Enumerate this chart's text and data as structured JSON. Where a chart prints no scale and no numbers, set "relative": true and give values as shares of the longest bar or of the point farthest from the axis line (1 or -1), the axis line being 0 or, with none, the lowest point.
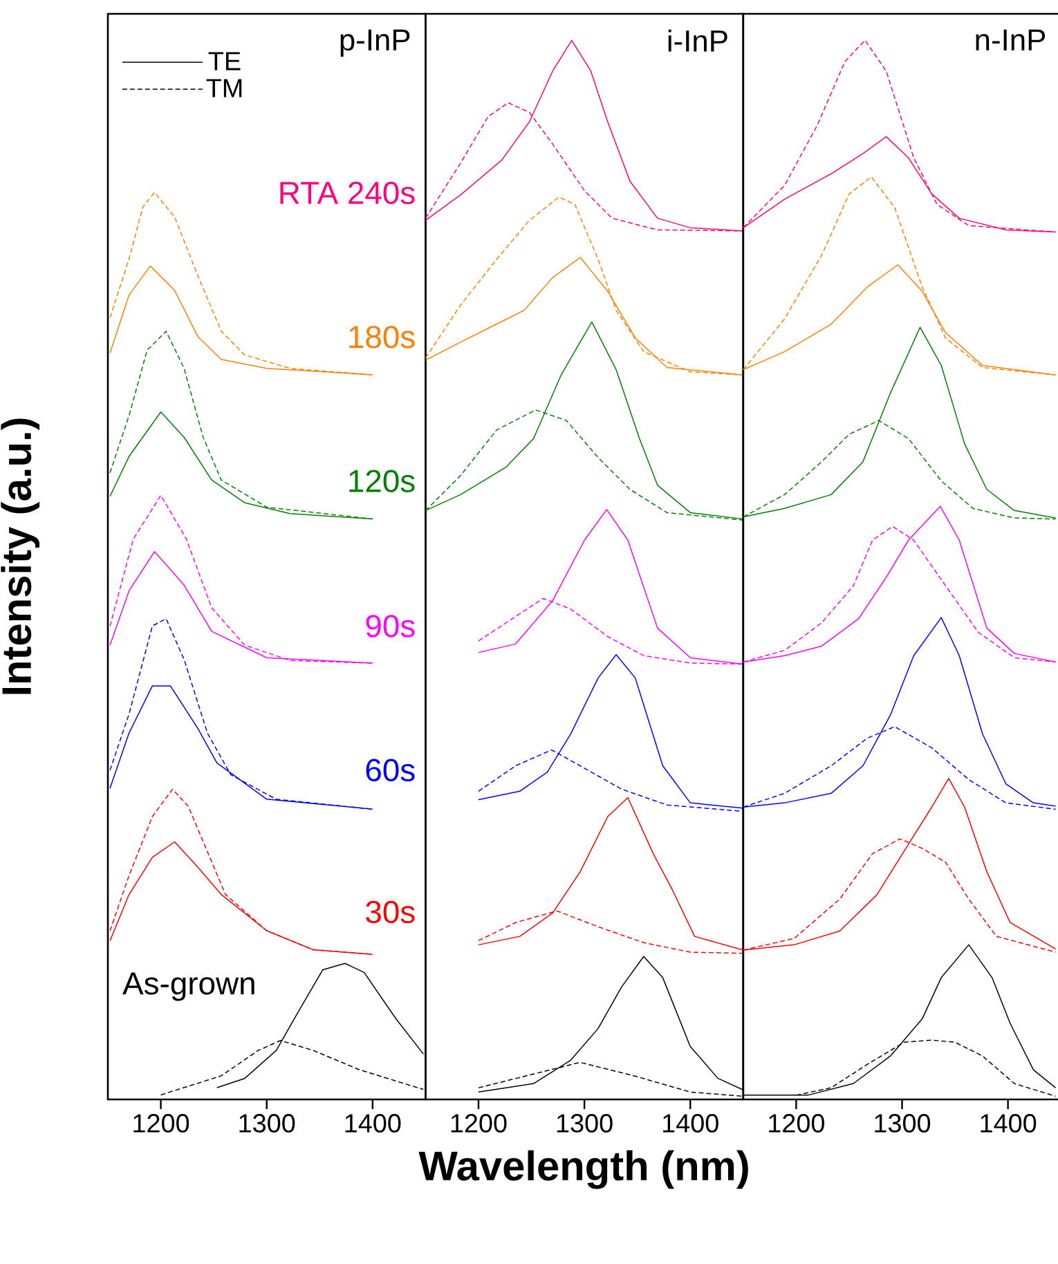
{
  "chart_data": [
    {
      "type": "line",
      "title": "p-InP",
      "ylabel": "Intensity (a.u.)",
      "relative": true,
      "marker": "none",
      "legend": "top left",
      "xlim": [
        1150,
        1450
      ],
      "xticks": [
        1200,
        1300,
        1400
      ],
      "annotations": [
        "RTA 240s",
        "180s",
        "120s",
        "90s",
        "60s",
        "30s",
        "As-grown"
      ],
      "series": [
        {
          "color": "#ff8000",
          "line_style": "solid",
          "x": [
            1152,
            1170,
            1190,
            1213,
            1235,
            1257,
            1300,
            1400
          ],
          "values": [
            0.823,
            0.887,
            0.919,
            0.892,
            0.841,
            0.816,
            0.806,
            0.799
          ]
        },
        {
          "color": "#ff8000",
          "line_style": "dashed",
          "x": [
            1152,
            1170,
            1183,
            1194,
            1213,
            1235,
            1257,
            1279,
            1322,
            1400
          ],
          "values": [
            0.862,
            0.927,
            0.984,
            1.0,
            0.973,
            0.908,
            0.847,
            0.821,
            0.806,
            0.799
          ]
        },
        {
          "color": "#008000",
          "line_style": "solid",
          "x": [
            1152,
            1170,
            1200,
            1222,
            1248,
            1279,
            1322,
            1400
          ],
          "values": [
            0.665,
            0.709,
            0.758,
            0.73,
            0.683,
            0.658,
            0.646,
            0.64
          ]
        },
        {
          "color": "#008000",
          "line_style": "dashed",
          "x": [
            1152,
            1170,
            1187,
            1205,
            1222,
            1240,
            1257,
            1300,
            1400
          ],
          "values": [
            0.691,
            0.754,
            0.826,
            0.847,
            0.806,
            0.73,
            0.683,
            0.653,
            0.64
          ]
        },
        {
          "color": "#ff00ff",
          "line_style": "solid",
          "x": [
            1152,
            1170,
            1194,
            1222,
            1248,
            1300,
            1400
          ],
          "values": [
            0.501,
            0.561,
            0.604,
            0.567,
            0.516,
            0.487,
            0.481
          ]
        },
        {
          "color": "#ff00ff",
          "line_style": "dashed",
          "x": [
            1152,
            1174,
            1200,
            1224,
            1248,
            1279,
            1322,
            1400
          ],
          "values": [
            0.522,
            0.618,
            0.666,
            0.618,
            0.542,
            0.501,
            0.484,
            0.481
          ]
        },
        {
          "color": "#0000ff",
          "line_style": "solid",
          "x": [
            1152,
            1170,
            1192,
            1209,
            1235,
            1253,
            1300,
            1400
          ],
          "values": [
            0.343,
            0.404,
            0.456,
            0.456,
            0.409,
            0.371,
            0.331,
            0.32
          ]
        },
        {
          "color": "#0000ff",
          "line_style": "dashed",
          "x": [
            1152,
            1170,
            1192,
            1205,
            1222,
            1244,
            1266,
            1309,
            1400
          ],
          "values": [
            0.363,
            0.425,
            0.522,
            0.53,
            0.485,
            0.404,
            0.358,
            0.331,
            0.32
          ]
        },
        {
          "color": "#ff0000",
          "line_style": "solid",
          "x": [
            1152,
            1170,
            1192,
            1213,
            1235,
            1257,
            1300,
            1344,
            1400
          ],
          "values": [
            0.175,
            0.226,
            0.267,
            0.284,
            0.256,
            0.226,
            0.186,
            0.165,
            0.16
          ]
        },
        {
          "color": "#ff0000",
          "line_style": "dashed",
          "x": [
            1152,
            1170,
            1192,
            1211,
            1226,
            1248,
            1261,
            1300,
            1344,
            1400
          ],
          "values": [
            0.186,
            0.247,
            0.312,
            0.342,
            0.323,
            0.262,
            0.226,
            0.186,
            0.165,
            0.16
          ]
        },
        {
          "name": "TE",
          "color": "#000000",
          "line_style": "solid",
          "x": [
            1253,
            1279,
            1309,
            1331,
            1353,
            1374,
            1392,
            1422,
            1448
          ],
          "values": [
            0.013,
            0.023,
            0.054,
            0.099,
            0.143,
            0.15,
            0.14,
            0.089,
            0.05
          ]
        },
        {
          "name": "TM",
          "color": "#000000",
          "line_style": "dashed",
          "x": [
            1200,
            1257,
            1292,
            1313,
            1344,
            1387,
            1448
          ],
          "values": [
            0.005,
            0.026,
            0.054,
            0.065,
            0.054,
            0.033,
            0.011
          ]
        }
      ]
    },
    {
      "type": "line",
      "title": "i-InP",
      "xlabel": "Wavelength (nm)",
      "relative": true,
      "marker": "none",
      "xlim": [
        1150,
        1450
      ],
      "xticks": [
        1200,
        1300,
        1400
      ],
      "series": [
        {
          "color": "#ff0080",
          "line_style": "solid",
          "x": [
            1150,
            1183,
            1222,
            1248,
            1270,
            1288,
            1306,
            1322,
            1343,
            1369,
            1400,
            1450
          ],
          "values": [
            0.83,
            0.854,
            0.887,
            0.923,
            0.971,
            1.0,
            0.971,
            0.923,
            0.867,
            0.832,
            0.823,
            0.82
          ]
        },
        {
          "color": "#ff0080",
          "line_style": "dashed",
          "x": [
            1150,
            1183,
            1209,
            1228,
            1248,
            1270,
            1300,
            1326,
            1369,
            1450
          ],
          "values": [
            0.832,
            0.884,
            0.928,
            0.941,
            0.932,
            0.902,
            0.858,
            0.832,
            0.821,
            0.82
          ]
        },
        {
          "color": "#ff8000",
          "line_style": "solid",
          "x": [
            1150,
            1183,
            1217,
            1243,
            1270,
            1296,
            1322,
            1348,
            1378,
            1450
          ],
          "values": [
            0.698,
            0.715,
            0.732,
            0.745,
            0.776,
            0.795,
            0.763,
            0.719,
            0.691,
            0.684
          ]
        },
        {
          "color": "#ff8000",
          "line_style": "dashed",
          "x": [
            1150,
            1183,
            1217,
            1248,
            1276,
            1291,
            1313,
            1330,
            1356,
            1400,
            1450
          ],
          "values": [
            0.7,
            0.75,
            0.793,
            0.83,
            0.852,
            0.845,
            0.793,
            0.745,
            0.706,
            0.687,
            0.684
          ]
        },
        {
          "color": "#008000",
          "line_style": "solid",
          "x": [
            1150,
            1183,
            1226,
            1252,
            1278,
            1307,
            1330,
            1352,
            1369,
            1400,
            1450
          ],
          "values": [
            0.556,
            0.571,
            0.597,
            0.624,
            0.684,
            0.734,
            0.689,
            0.624,
            0.58,
            0.554,
            0.548
          ]
        },
        {
          "color": "#008000",
          "line_style": "dashed",
          "x": [
            1150,
            1183,
            1217,
            1254,
            1283,
            1313,
            1343,
            1378,
            1450
          ],
          "values": [
            0.556,
            0.589,
            0.632,
            0.651,
            0.641,
            0.606,
            0.576,
            0.554,
            0.547
          ]
        },
        {
          "color": "#ff00ff",
          "line_style": "solid",
          "x": [
            1200,
            1235,
            1270,
            1300,
            1321,
            1341,
            1369,
            1400,
            1450
          ],
          "values": [
            0.422,
            0.43,
            0.471,
            0.528,
            0.557,
            0.528,
            0.445,
            0.417,
            0.411
          ]
        },
        {
          "color": "#ff00ff",
          "line_style": "dashed",
          "x": [
            1200,
            1226,
            1261,
            1287,
            1322,
            1356,
            1400,
            1450
          ],
          "values": [
            0.433,
            0.45,
            0.473,
            0.463,
            0.437,
            0.419,
            0.412,
            0.411
          ]
        },
        {
          "color": "#0000ff",
          "line_style": "solid",
          "x": [
            1200,
            1239,
            1265,
            1287,
            1313,
            1330,
            1348,
            1374,
            1400,
            1450
          ],
          "values": [
            0.283,
            0.291,
            0.309,
            0.345,
            0.398,
            0.42,
            0.398,
            0.315,
            0.28,
            0.275
          ]
        },
        {
          "color": "#0000ff",
          "line_style": "dashed",
          "x": [
            1200,
            1235,
            1269,
            1296,
            1335,
            1378,
            1450
          ],
          "values": [
            0.291,
            0.315,
            0.33,
            0.315,
            0.293,
            0.278,
            0.272
          ]
        },
        {
          "color": "#ff0000",
          "line_style": "solid",
          "x": [
            1200,
            1239,
            1270,
            1296,
            1322,
            1341,
            1365,
            1383,
            1404,
            1450
          ],
          "values": [
            0.146,
            0.154,
            0.176,
            0.215,
            0.267,
            0.285,
            0.232,
            0.198,
            0.154,
            0.141
          ]
        },
        {
          "color": "#ff0000",
          "line_style": "dashed",
          "x": [
            1200,
            1235,
            1274,
            1313,
            1356,
            1400,
            1450
          ],
          "values": [
            0.15,
            0.167,
            0.178,
            0.163,
            0.148,
            0.139,
            0.138
          ]
        },
        {
          "color": "#000000",
          "line_style": "solid",
          "x": [
            1200,
            1252,
            1287,
            1313,
            1335,
            1356,
            1374,
            1400,
            1426,
            1450
          ],
          "values": [
            0.007,
            0.015,
            0.037,
            0.067,
            0.106,
            0.135,
            0.115,
            0.05,
            0.02,
            0.009
          ]
        },
        {
          "color": "#000000",
          "line_style": "dashed",
          "x": [
            1200,
            1252,
            1296,
            1348,
            1400,
            1450
          ],
          "values": [
            0.011,
            0.024,
            0.035,
            0.022,
            0.007,
            0.003
          ]
        }
      ]
    },
    {
      "type": "line",
      "title": "n-InP",
      "relative": true,
      "marker": "none",
      "xlim": [
        1150,
        1450
      ],
      "xticks": [
        1200,
        1300,
        1400
      ],
      "series": [
        {
          "color": "#ff0080",
          "line_style": "solid",
          "x": [
            1150,
            1189,
            1233,
            1263,
            1285,
            1306,
            1328,
            1354,
            1398,
            1445
          ],
          "values": [
            0.823,
            0.85,
            0.874,
            0.893,
            0.909,
            0.889,
            0.855,
            0.832,
            0.821,
            0.819
          ]
        },
        {
          "color": "#ff0080",
          "line_style": "dashed",
          "x": [
            1150,
            1189,
            1220,
            1246,
            1265,
            1285,
            1311,
            1333,
            1363,
            1445
          ],
          "values": [
            0.823,
            0.863,
            0.92,
            0.98,
            1.0,
            0.971,
            0.889,
            0.845,
            0.825,
            0.819
          ]
        },
        {
          "color": "#ff8000",
          "line_style": "solid",
          "x": [
            1150,
            1189,
            1233,
            1267,
            1296,
            1319,
            1341,
            1376,
            1445
          ],
          "values": [
            0.689,
            0.706,
            0.732,
            0.767,
            0.788,
            0.763,
            0.724,
            0.693,
            0.684
          ]
        },
        {
          "color": "#ff8000",
          "line_style": "dashed",
          "x": [
            1150,
            1189,
            1224,
            1250,
            1271,
            1293,
            1319,
            1341,
            1376,
            1445
          ],
          "values": [
            0.689,
            0.737,
            0.797,
            0.855,
            0.871,
            0.842,
            0.767,
            0.719,
            0.691,
            0.684
          ]
        },
        {
          "color": "#008000",
          "line_style": "solid",
          "x": [
            1150,
            1189,
            1233,
            1263,
            1289,
            1317,
            1337,
            1359,
            1380,
            1406,
            1445
          ],
          "values": [
            0.55,
            0.558,
            0.571,
            0.602,
            0.667,
            0.729,
            0.693,
            0.619,
            0.576,
            0.556,
            0.549
          ]
        },
        {
          "color": "#008000",
          "line_style": "dashed",
          "x": [
            1150,
            1189,
            1224,
            1250,
            1278,
            1306,
            1337,
            1367,
            1406,
            1445
          ],
          "values": [
            0.55,
            0.571,
            0.602,
            0.628,
            0.641,
            0.624,
            0.584,
            0.558,
            0.549,
            0.548
          ]
        },
        {
          "color": "#ff00ff",
          "line_style": "solid",
          "x": [
            1150,
            1189,
            1224,
            1259,
            1285,
            1306,
            1336,
            1354,
            1380,
            1406,
            1445
          ],
          "values": [
            0.413,
            0.419,
            0.428,
            0.454,
            0.493,
            0.528,
            0.56,
            0.528,
            0.445,
            0.421,
            0.413
          ]
        },
        {
          "color": "#ff00ff",
          "line_style": "dashed",
          "x": [
            1150,
            1189,
            1224,
            1254,
            1272,
            1291,
            1311,
            1341,
            1372,
            1406,
            1445
          ],
          "values": [
            0.413,
            0.424,
            0.45,
            0.485,
            0.528,
            0.541,
            0.528,
            0.485,
            0.441,
            0.417,
            0.413
          ]
        },
        {
          "color": "#0000ff",
          "line_style": "solid",
          "x": [
            1150,
            1189,
            1233,
            1263,
            1289,
            1311,
            1337,
            1354,
            1376,
            1398,
            1424,
            1445
          ],
          "values": [
            0.276,
            0.28,
            0.289,
            0.315,
            0.363,
            0.419,
            0.455,
            0.419,
            0.345,
            0.298,
            0.28,
            0.277
          ]
        },
        {
          "color": "#0000ff",
          "line_style": "dashed",
          "x": [
            1150,
            1189,
            1233,
            1267,
            1293,
            1328,
            1363,
            1398,
            1445
          ],
          "values": [
            0.276,
            0.289,
            0.315,
            0.341,
            0.352,
            0.332,
            0.302,
            0.28,
            0.274
          ]
        },
        {
          "color": "#ff0000",
          "line_style": "solid",
          "x": [
            1150,
            1198,
            1241,
            1276,
            1306,
            1328,
            1344,
            1359,
            1380,
            1402,
            1445
          ],
          "values": [
            0.141,
            0.146,
            0.159,
            0.193,
            0.241,
            0.276,
            0.303,
            0.276,
            0.215,
            0.167,
            0.142
          ]
        },
        {
          "color": "#ff0000",
          "line_style": "dashed",
          "x": [
            1150,
            1198,
            1241,
            1272,
            1298,
            1319,
            1341,
            1363,
            1389,
            1445
          ],
          "values": [
            0.141,
            0.152,
            0.189,
            0.232,
            0.246,
            0.237,
            0.224,
            0.189,
            0.154,
            0.139
          ]
        },
        {
          "color": "#000000",
          "line_style": "solid",
          "x": [
            1150,
            1211,
            1254,
            1289,
            1319,
            1337,
            1363,
            1385,
            1402,
            1424,
            1445
          ],
          "values": [
            0.004,
            0.004,
            0.015,
            0.041,
            0.076,
            0.115,
            0.146,
            0.115,
            0.072,
            0.028,
            0.011
          ]
        },
        {
          "color": "#000000",
          "line_style": "dashed",
          "x": [
            1200,
            1233,
            1267,
            1302,
            1328,
            1350,
            1376,
            1406,
            1445
          ],
          "values": [
            0.004,
            0.011,
            0.033,
            0.054,
            0.056,
            0.054,
            0.041,
            0.015,
            0.003
          ]
        }
      ]
    }
  ]
}
